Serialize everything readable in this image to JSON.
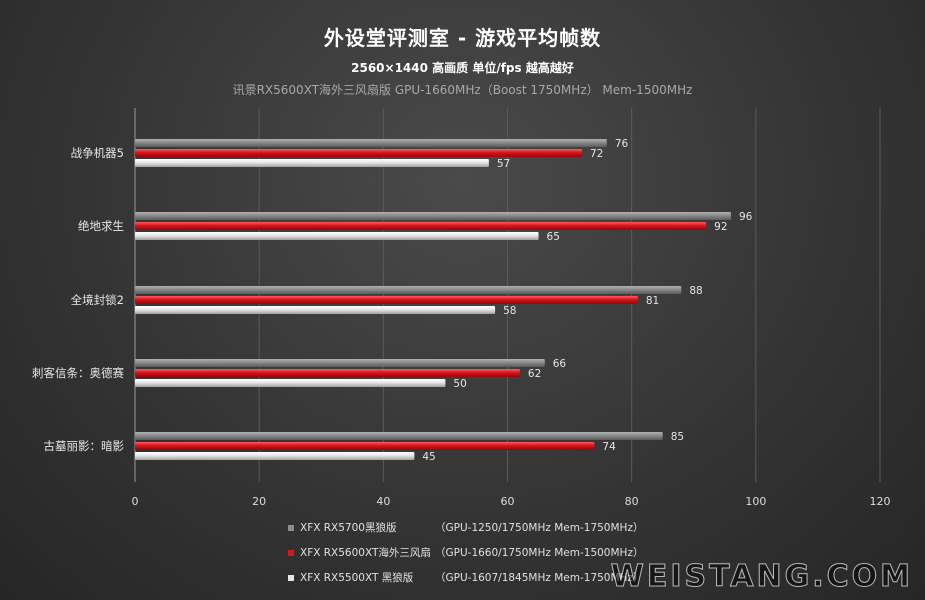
{
  "title": "外设堂评测室  -  游戏平均帧数",
  "subtitle": "2560×1440  高画质  单位/fps  越高越好",
  "subtitle2": "讯景RX5600XT海外三风扇版  GPU-1660MHz（Boost  1750MHz）  Mem-1500MHz",
  "watermark": "WEISTANG.COM",
  "chart_data": {
    "type": "bar",
    "orientation": "horizontal",
    "categories": [
      "战争机器5",
      "绝地求生",
      "全境封锁2",
      "刺客信条：奥德赛",
      "古墓丽影：暗影"
    ],
    "series": [
      {
        "name": "XFX RX5700黑狼版",
        "spec": "（GPU-1250/1750MHz Mem-1750MHz）",
        "color": "#8c8c8c",
        "values": [
          76,
          96,
          88,
          66,
          85
        ]
      },
      {
        "name": "XFX RX5600XT海外三风扇",
        "spec": "（GPU-1660/1750MHz Mem-1500MHz）",
        "color": "#d8141c",
        "values": [
          72,
          92,
          81,
          62,
          74
        ]
      },
      {
        "name": "XFX RX5500XT 黑狼版",
        "spec": "（GPU-1607/1845MHz Mem-1750MHz）",
        "color": "#e6e6e6",
        "values": [
          57,
          65,
          58,
          50,
          45
        ]
      }
    ],
    "xlim": [
      0,
      120
    ],
    "xticks": [
      0,
      20,
      40,
      60,
      80,
      100,
      120
    ],
    "grid": true,
    "legend_position": "bottom"
  }
}
